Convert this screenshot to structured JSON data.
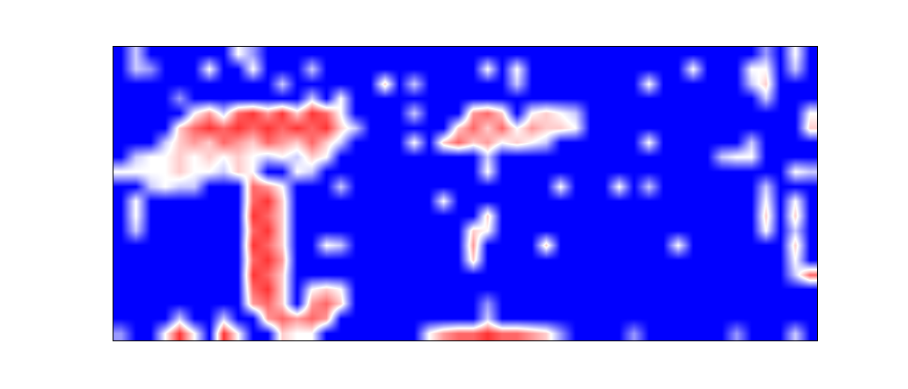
{
  "chart_data": {
    "type": "heatmap",
    "tick_labels": false,
    "zlim": [
      0,
      10
    ],
    "z": [
      [
        0,
        4,
        0,
        0,
        0,
        0,
        0,
        0,
        5,
        3,
        0,
        0,
        0,
        0,
        0,
        0,
        0,
        0,
        0,
        0,
        0,
        0,
        0,
        0,
        0,
        0,
        0,
        0,
        0,
        0,
        0,
        0,
        0,
        0,
        0,
        0,
        0,
        0,
        0,
        0,
        0,
        0,
        0,
        0,
        3,
        0,
        5,
        0
      ],
      [
        0,
        4,
        3,
        0,
        0,
        0,
        5,
        0,
        0,
        5,
        0,
        0,
        0,
        4,
        0,
        0,
        0,
        0,
        0,
        0,
        0,
        0,
        0,
        0,
        0,
        5,
        0,
        5,
        0,
        0,
        0,
        0,
        0,
        0,
        0,
        0,
        0,
        0,
        0,
        5,
        0,
        0,
        0,
        5,
        5,
        0,
        4,
        0
      ],
      [
        0,
        0,
        0,
        0,
        0,
        0,
        0,
        0,
        0,
        0,
        0,
        4,
        0,
        0,
        0,
        0,
        0,
        0,
        6,
        0,
        4,
        0,
        0,
        0,
        0,
        0,
        0,
        4,
        0,
        0,
        0,
        0,
        0,
        0,
        0,
        0,
        5,
        0,
        0,
        0,
        0,
        0,
        0,
        4,
        6,
        0,
        0,
        0
      ],
      [
        0,
        0,
        0,
        0,
        3,
        0,
        0,
        0,
        0,
        0,
        0,
        0,
        0,
        4,
        0,
        5,
        0,
        0,
        0,
        0,
        0,
        0,
        0,
        0,
        0,
        0,
        0,
        0,
        0,
        0,
        0,
        0,
        0,
        0,
        0,
        0,
        0,
        0,
        0,
        0,
        0,
        0,
        0,
        0,
        4,
        0,
        0,
        0
      ],
      [
        0,
        0,
        0,
        0,
        0,
        5,
        7,
        4,
        8,
        9,
        7,
        9,
        6,
        9,
        8,
        5,
        0,
        0,
        0,
        0,
        4,
        0,
        0,
        0,
        7,
        8,
        6,
        0,
        5,
        6,
        5,
        4,
        0,
        0,
        0,
        0,
        0,
        0,
        0,
        0,
        0,
        0,
        0,
        0,
        0,
        0,
        0,
        5
      ],
      [
        0,
        0,
        0,
        0,
        6,
        8,
        9,
        8,
        9,
        8,
        9,
        8,
        9,
        8,
        9,
        6,
        4,
        0,
        0,
        0,
        0,
        0,
        0,
        6,
        8,
        6,
        8,
        5,
        7,
        6,
        6,
        5,
        0,
        0,
        0,
        0,
        0,
        0,
        0,
        0,
        0,
        0,
        0,
        0,
        0,
        0,
        0,
        6
      ],
      [
        0,
        0,
        0,
        4,
        6,
        7,
        6,
        8,
        7,
        6,
        8,
        7,
        6,
        8,
        6,
        4,
        0,
        0,
        0,
        0,
        5,
        0,
        6,
        8,
        6,
        7,
        5,
        6,
        5,
        4,
        0,
        0,
        0,
        0,
        0,
        0,
        5,
        0,
        0,
        0,
        0,
        0,
        0,
        4,
        0,
        0,
        0,
        0
      ],
      [
        0,
        4,
        5,
        5,
        6,
        5,
        6,
        5,
        6,
        5,
        4,
        5,
        4,
        6,
        5,
        0,
        0,
        0,
        0,
        0,
        0,
        0,
        0,
        0,
        0,
        4,
        0,
        0,
        0,
        0,
        0,
        0,
        0,
        0,
        0,
        0,
        0,
        0,
        0,
        0,
        0,
        4,
        5,
        5,
        0,
        0,
        0,
        0
      ],
      [
        5,
        5,
        5,
        5,
        6,
        5,
        5,
        4,
        6,
        5,
        0,
        0,
        5,
        4,
        0,
        0,
        0,
        0,
        0,
        0,
        0,
        0,
        0,
        0,
        0,
        5,
        0,
        0,
        0,
        0,
        0,
        0,
        0,
        0,
        0,
        0,
        0,
        0,
        0,
        0,
        0,
        0,
        0,
        0,
        0,
        0,
        5,
        4
      ],
      [
        0,
        0,
        4,
        5,
        4,
        4,
        0,
        0,
        0,
        8,
        7,
        5,
        0,
        0,
        0,
        4,
        0,
        0,
        0,
        0,
        0,
        0,
        0,
        0,
        0,
        0,
        0,
        0,
        0,
        0,
        5,
        0,
        0,
        0,
        5,
        0,
        4,
        0,
        0,
        0,
        0,
        0,
        0,
        0,
        4,
        0,
        0,
        0
      ],
      [
        0,
        5,
        0,
        0,
        0,
        0,
        0,
        0,
        0,
        8,
        9,
        6,
        0,
        0,
        0,
        0,
        0,
        0,
        0,
        0,
        0,
        0,
        5,
        0,
        0,
        0,
        0,
        0,
        0,
        0,
        0,
        0,
        0,
        0,
        0,
        0,
        0,
        0,
        0,
        0,
        0,
        0,
        0,
        0,
        5,
        0,
        5,
        0
      ],
      [
        0,
        5,
        0,
        0,
        0,
        0,
        0,
        0,
        0,
        9,
        8,
        6,
        0,
        0,
        0,
        0,
        0,
        0,
        0,
        0,
        0,
        0,
        0,
        0,
        0,
        6,
        0,
        0,
        0,
        0,
        0,
        0,
        0,
        0,
        0,
        0,
        0,
        0,
        0,
        0,
        0,
        0,
        0,
        0,
        6,
        0,
        6,
        0
      ],
      [
        0,
        4,
        0,
        0,
        0,
        0,
        0,
        0,
        0,
        8,
        9,
        6,
        0,
        0,
        0,
        0,
        0,
        0,
        0,
        0,
        0,
        0,
        0,
        0,
        6,
        5,
        0,
        0,
        0,
        0,
        0,
        0,
        0,
        0,
        0,
        0,
        0,
        0,
        0,
        0,
        0,
        0,
        0,
        0,
        5,
        0,
        4,
        0
      ],
      [
        0,
        0,
        0,
        0,
        0,
        0,
        0,
        0,
        0,
        9,
        8,
        6,
        0,
        0,
        5,
        4,
        0,
        0,
        0,
        0,
        0,
        0,
        0,
        0,
        7,
        0,
        0,
        0,
        0,
        6,
        0,
        0,
        0,
        0,
        0,
        0,
        0,
        0,
        5,
        0,
        0,
        0,
        0,
        0,
        0,
        0,
        6,
        0
      ],
      [
        0,
        0,
        0,
        0,
        0,
        0,
        0,
        0,
        0,
        8,
        9,
        7,
        0,
        0,
        0,
        0,
        0,
        0,
        0,
        0,
        0,
        0,
        0,
        0,
        6,
        0,
        0,
        0,
        0,
        0,
        0,
        0,
        0,
        0,
        0,
        0,
        0,
        0,
        0,
        0,
        0,
        0,
        0,
        0,
        0,
        0,
        5,
        0
      ],
      [
        0,
        0,
        0,
        0,
        0,
        0,
        0,
        0,
        0,
        9,
        8,
        6,
        0,
        0,
        0,
        0,
        0,
        0,
        0,
        0,
        0,
        0,
        0,
        0,
        0,
        0,
        0,
        0,
        0,
        0,
        0,
        0,
        0,
        0,
        0,
        0,
        0,
        0,
        0,
        0,
        0,
        0,
        0,
        0,
        0,
        0,
        4,
        8
      ],
      [
        0,
        0,
        0,
        0,
        0,
        0,
        0,
        0,
        0,
        8,
        9,
        6,
        0,
        5,
        6,
        5,
        0,
        0,
        0,
        0,
        0,
        0,
        0,
        0,
        0,
        0,
        0,
        0,
        0,
        0,
        0,
        0,
        0,
        0,
        0,
        0,
        0,
        0,
        0,
        0,
        0,
        0,
        0,
        0,
        0,
        0,
        0,
        0
      ],
      [
        0,
        0,
        0,
        0,
        0,
        0,
        0,
        0,
        0,
        7,
        8,
        6,
        0,
        7,
        8,
        6,
        0,
        0,
        0,
        0,
        0,
        0,
        0,
        0,
        0,
        3,
        0,
        0,
        0,
        0,
        0,
        0,
        0,
        0,
        0,
        0,
        0,
        0,
        0,
        0,
        0,
        0,
        0,
        0,
        0,
        0,
        0,
        0
      ],
      [
        0,
        0,
        0,
        0,
        4,
        0,
        0,
        4,
        0,
        0,
        7,
        8,
        7,
        8,
        7,
        0,
        0,
        0,
        0,
        0,
        0,
        0,
        0,
        0,
        0,
        4,
        0,
        0,
        0,
        0,
        0,
        0,
        0,
        0,
        0,
        0,
        0,
        0,
        0,
        0,
        0,
        0,
        0,
        0,
        0,
        0,
        0,
        0
      ],
      [
        3,
        0,
        0,
        5,
        9,
        5,
        0,
        9,
        5,
        0,
        0,
        6,
        5,
        5,
        0,
        0,
        0,
        0,
        0,
        0,
        0,
        5,
        7,
        8,
        8,
        9,
        8,
        8,
        7,
        6,
        3,
        0,
        0,
        0,
        0,
        3,
        0,
        0,
        0,
        0,
        0,
        0,
        3,
        0,
        0,
        0,
        4,
        0
      ]
    ]
  }
}
